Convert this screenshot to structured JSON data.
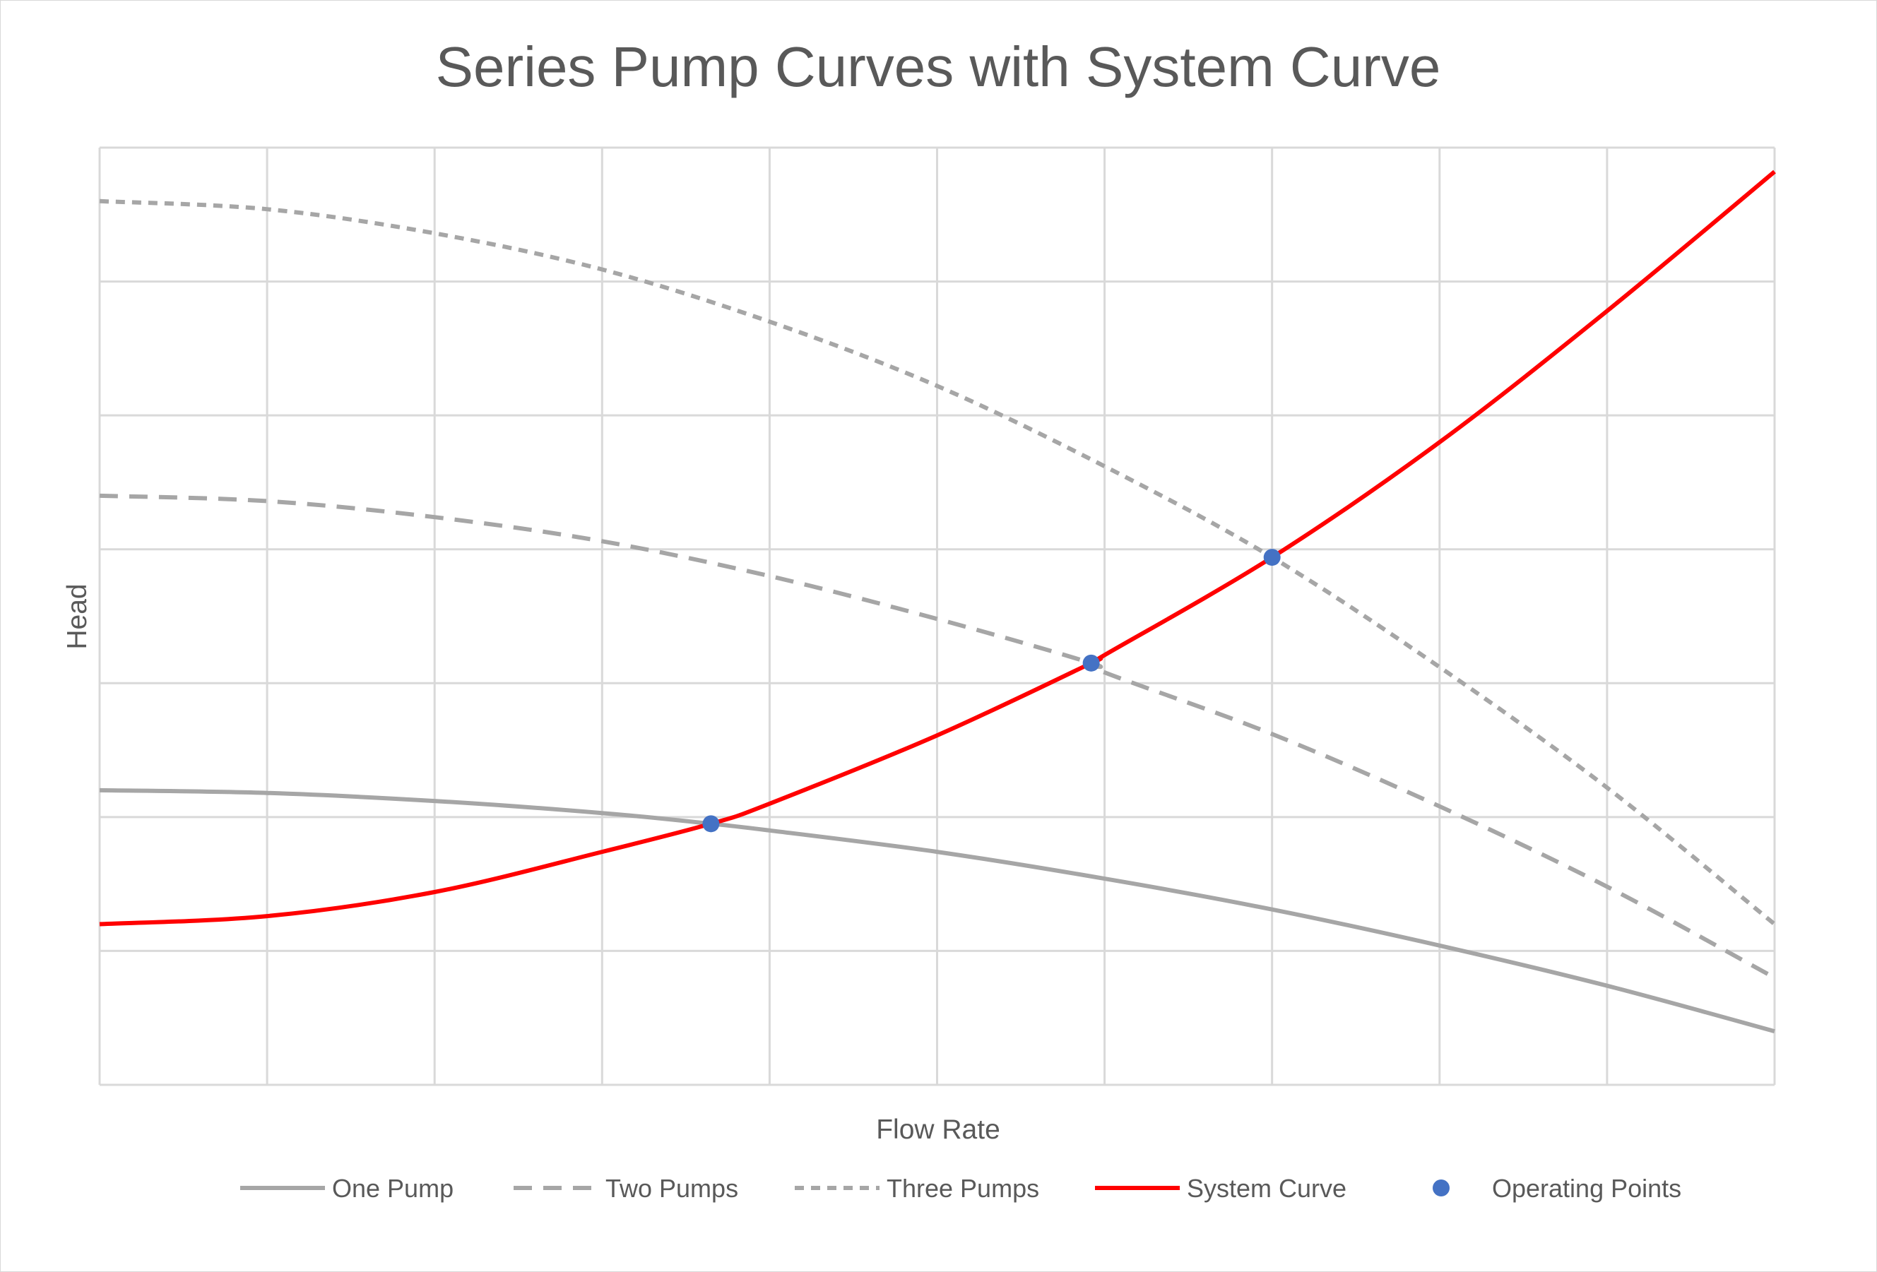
{
  "chart_data": {
    "type": "line",
    "title": "Series Pump Curves with System Curve",
    "xlabel": "Flow Rate",
    "ylabel": "Head",
    "xlim": [
      0,
      10
    ],
    "ylim": [
      0,
      7
    ],
    "x_gridlines": [
      0,
      1,
      2,
      3,
      4,
      5,
      6,
      7,
      8,
      9,
      10
    ],
    "y_gridlines": [
      0,
      1,
      2,
      3,
      4,
      5,
      6,
      7
    ],
    "grid": true,
    "tick_labels_shown": false,
    "legend_position": "bottom",
    "series": [
      {
        "name": "One Pump",
        "style": "solid",
        "color": "#a6a6a6",
        "x": [
          0,
          1,
          2,
          3,
          3.65,
          4,
          5,
          6,
          7,
          8,
          9,
          10
        ],
        "y": [
          2.2,
          2.18,
          2.12,
          2.03,
          1.95,
          1.9,
          1.74,
          1.54,
          1.31,
          1.04,
          0.74,
          0.4
        ]
      },
      {
        "name": "Two Pumps",
        "style": "dashed",
        "color": "#a6a6a6",
        "x": [
          0,
          1,
          2,
          3,
          4,
          5,
          5.92,
          6,
          7,
          8,
          9,
          10
        ],
        "y": [
          4.4,
          4.36,
          4.24,
          4.06,
          3.8,
          3.48,
          3.15,
          3.08,
          2.62,
          2.08,
          1.48,
          0.8
        ]
      },
      {
        "name": "Three Pumps",
        "style": "dotted",
        "color": "#a6a6a6",
        "x": [
          0,
          1,
          2,
          3,
          4,
          5,
          6,
          7,
          8,
          9,
          10
        ],
        "y": [
          6.6,
          6.54,
          6.36,
          6.09,
          5.7,
          5.22,
          4.62,
          3.94,
          3.12,
          2.22,
          1.2
        ]
      },
      {
        "name": "System Curve",
        "style": "solid",
        "color": "#ff0000",
        "x": [
          0,
          1,
          2,
          3,
          3.65,
          4,
          5,
          5.92,
          6,
          7,
          8,
          9,
          10
        ],
        "y": [
          1.2,
          1.26,
          1.44,
          1.74,
          1.95,
          2.1,
          2.61,
          3.15,
          3.21,
          3.94,
          4.8,
          5.78,
          6.82
        ]
      },
      {
        "name": "Operating Points",
        "style": "marker",
        "color": "#4472c4",
        "x": [
          3.65,
          5.92,
          7
        ],
        "y": [
          1.95,
          3.15,
          3.94
        ]
      }
    ]
  }
}
